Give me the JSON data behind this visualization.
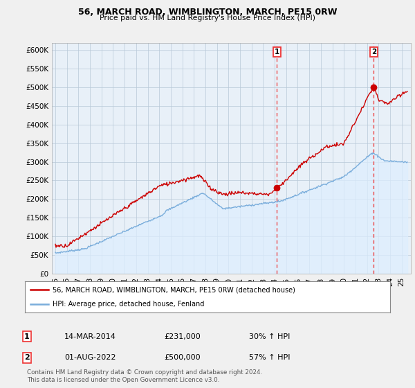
{
  "title": "56, MARCH ROAD, WIMBLINGTON, MARCH, PE15 0RW",
  "subtitle": "Price paid vs. HM Land Registry's House Price Index (HPI)",
  "ylabel_ticks": [
    "£0",
    "£50K",
    "£100K",
    "£150K",
    "£200K",
    "£250K",
    "£300K",
    "£350K",
    "£400K",
    "£450K",
    "£500K",
    "£550K",
    "£600K"
  ],
  "ytick_vals": [
    0,
    50000,
    100000,
    150000,
    200000,
    250000,
    300000,
    350000,
    400000,
    450000,
    500000,
    550000,
    600000
  ],
  "ylim": [
    0,
    620000
  ],
  "sale_color": "#cc0000",
  "hpi_color": "#7aaddb",
  "hpi_fill_color": "#ddeeff",
  "vline_color": "#ee3333",
  "marker1_x": 2014.2,
  "marker1_y": 231000,
  "marker1_label": "1",
  "marker2_x": 2022.58,
  "marker2_y": 500000,
  "marker2_label": "2",
  "table_row1": [
    "1",
    "14-MAR-2014",
    "£231,000",
    "30% ↑ HPI"
  ],
  "table_row2": [
    "2",
    "01-AUG-2022",
    "£500,000",
    "57% ↑ HPI"
  ],
  "legend_line1": "56, MARCH ROAD, WIMBLINGTON, MARCH, PE15 0RW (detached house)",
  "legend_line2": "HPI: Average price, detached house, Fenland",
  "footnote": "Contains HM Land Registry data © Crown copyright and database right 2024.\nThis data is licensed under the Open Government Licence v3.0.",
  "bg_color": "#f0f0f0",
  "plot_bg": "#e8f0f8",
  "xmin": 1994.7,
  "xmax": 2025.8
}
